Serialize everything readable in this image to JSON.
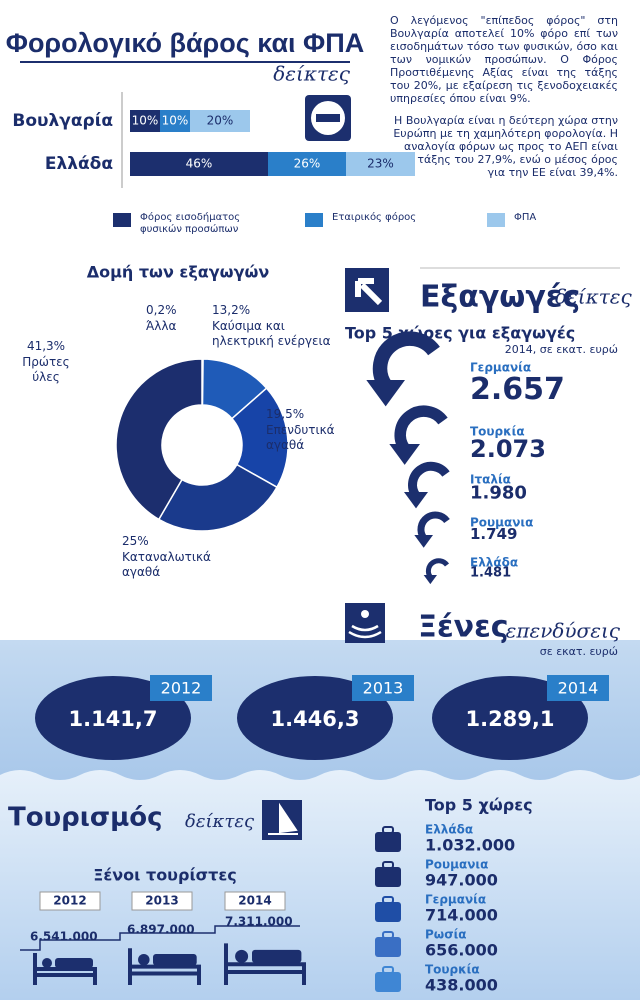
{
  "header": {
    "title": "Φορολογικό βάρος και ΦΠΑ",
    "subtitle": "δείκτες",
    "paragraphs": [
      "Ο λεγόμενος \"επίπεδος φόρος\" στη Βουλγαρία αποτελεί 10% φόρο επί των εισοδημάτων τόσο των φυσικών, όσο και των νομικών προσώπων. Ο Φόρος Προστιθέμενης Αξίας είναι της τάξης του 20%, με εξαίρεση τις ξενοδοχειακές υπηρεσίες όπου είναι 9%.",
      "Η Βουλγαρία είναι η δεύτερη χώρα στην Ευρώπη με τη χαμηλότερη φορολογία. Η αναλογία φόρων ως προς το ΑΕΠ είναι της τάξης του 27,9%, ενώ ο μέσος όρος για την ΕΕ είναι 39,4%."
    ]
  },
  "chart_data": [
    {
      "type": "stacked-bar",
      "categories": [
        "Βουλγαρία",
        "Ελλάδα"
      ],
      "series": [
        {
          "name": "Φόρος εισοδήματος φυσικών προσώπων",
          "color": "#1c2f6e",
          "values": [
            10,
            46
          ],
          "value_labels": [
            "10%",
            "46%"
          ]
        },
        {
          "name": "Εταιρικός φόρος",
          "color": "#2a7fc9",
          "values": [
            10,
            26
          ],
          "value_labels": [
            "10%",
            "26%"
          ]
        },
        {
          "name": "ΦΠΑ",
          "color": "#9cc8ec",
          "values": [
            20,
            23
          ],
          "value_labels": [
            "20%",
            "23%"
          ]
        }
      ]
    },
    {
      "type": "pie",
      "title": "Δομή των εξαγωγών",
      "categories": [
        "Άλλα",
        "Καύσιμα και ηλεκτρική ενέργεια",
        "Επενδυτικά αγαθά",
        "Καταναλωτικά αγαθά",
        "Πρώτες ύλες"
      ],
      "values": [
        0.2,
        13.2,
        19.5,
        25,
        41.3
      ],
      "value_labels": [
        "0,2%",
        "13,2%",
        "19,5%",
        "25%",
        "41,3%"
      ],
      "colors": [
        "#4a7fd0",
        "#1f5bb8",
        "#1744a8",
        "#1a3a8c",
        "#1c2e6e"
      ]
    }
  ],
  "exports": {
    "title": "Εξαγωγές",
    "subtitle": "δείκτες",
    "heading": "Top 5  χώρες για εξαγωγές",
    "note": "2014, σε εκατ. ευρώ",
    "items": [
      {
        "name": "Γερμανία",
        "value": "2.657"
      },
      {
        "name": "Τουρκία",
        "value": "2.073"
      },
      {
        "name": "Ιταλία",
        "value": "1.980"
      },
      {
        "name": "Ρουμανια",
        "value": "1.749"
      },
      {
        "name": "Ελλάδα",
        "value": "1.481"
      }
    ]
  },
  "investments": {
    "title": "Ξένες",
    "subtitle": "επενδύσεις",
    "note": "σε εκατ. ευρώ",
    "items": [
      {
        "year": "2012",
        "value": "1.141,7"
      },
      {
        "year": "2013",
        "value": "1.446,3"
      },
      {
        "year": "2014",
        "value": "1.289,1"
      }
    ]
  },
  "tourism": {
    "title": "Τουρισμός",
    "subtitle": "δείκτες",
    "tourists_title": "Ξένοι τουρίστες",
    "tourists": [
      {
        "year": "2012",
        "value": "6.541.000"
      },
      {
        "year": "2013",
        "value": "6.897.000"
      },
      {
        "year": "2014",
        "value": "7.311.000"
      }
    ],
    "top_title": "Top 5  χώρες",
    "top": [
      {
        "name": "Ελλάδα",
        "value": "1.032.000"
      },
      {
        "name": "Ρουμανια",
        "value": "947.000"
      },
      {
        "name": "Γερμανία",
        "value": "714.000"
      },
      {
        "name": "Ρωσία",
        "value": "656.000"
      },
      {
        "name": "Τουρκία",
        "value": "438.000"
      }
    ]
  }
}
